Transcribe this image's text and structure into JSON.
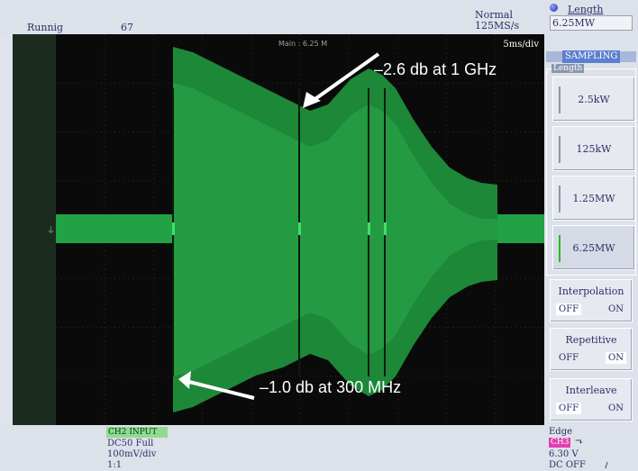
{
  "status": {
    "run_state": "Runnig",
    "trigger_count": "67"
  },
  "acquisition": {
    "mode": "Normal",
    "sample_rate": "125MS/s"
  },
  "waveform": {
    "main_label": "Main : 6.25 M",
    "timebase": "5ms/div"
  },
  "annotations": {
    "top": "–2.6 db at 1 GHz",
    "bottom": "–1.0 db at 300 MHz"
  },
  "length": {
    "title": "Length",
    "value": "6.25MW",
    "sampling_title": "SAMPLING",
    "group_label": "Length",
    "options": [
      "2.5kW",
      "125kW",
      "1.25MW",
      "6.25MW"
    ],
    "selected": "6.25MW"
  },
  "interpolation": {
    "title": "Interpolation",
    "off": "OFF",
    "on": "ON",
    "selected": "OFF"
  },
  "repetitive": {
    "title": "Repetitive",
    "off": "OFF",
    "on": "ON",
    "selected": "ON"
  },
  "interleave": {
    "title": "Interleave",
    "off": "OFF",
    "on": "ON",
    "selected": "OFF"
  },
  "channel": {
    "title": "CH2  INPUT",
    "coupling": "DC50 Full",
    "scale": "100mV/div",
    "probe": "1:1",
    "color": "#8fdc8f"
  },
  "trigger": {
    "type": "Edge",
    "source": "CH3",
    "slope_icon": "⬎",
    "level": "6.30 V",
    "coupling": "DC OFF",
    "filter_icon": "≀"
  },
  "colors": {
    "trace": "#1f9a3c",
    "screen": "#0a0a0a",
    "source_badge": "#e040b0"
  }
}
